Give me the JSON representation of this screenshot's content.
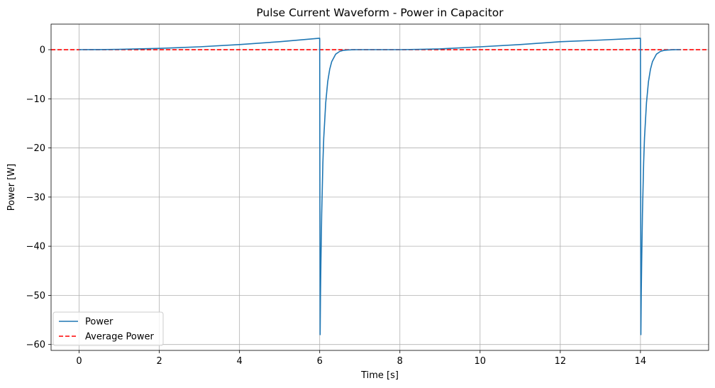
{
  "chart_data": {
    "type": "line",
    "title": "Pulse Current Waveform - Power in Capacitor",
    "xlabel": "Time [s]",
    "ylabel": "Power [W]",
    "xlim": [
      -0.7,
      15.7
    ],
    "ylim": [
      -61.2,
      5.2
    ],
    "xticks": [
      0,
      2,
      4,
      6,
      8,
      10,
      12,
      14
    ],
    "xtick_labels": [
      "0",
      "2",
      "4",
      "6",
      "8",
      "10",
      "12",
      "14"
    ],
    "yticks": [
      0,
      -10,
      -20,
      -30,
      -40,
      -50,
      -60
    ],
    "ytick_labels": [
      "0",
      "−10",
      "−20",
      "−30",
      "−40",
      "−50",
      "−60"
    ],
    "grid": true,
    "legend_position": "lower-left",
    "series": [
      {
        "name": "Power",
        "color": "#1f77b4",
        "style": "solid",
        "x": [
          0,
          0.5,
          1,
          2,
          3,
          4,
          5,
          5.99,
          6.0,
          6.01,
          6.02,
          6.03,
          6.05,
          6.08,
          6.1,
          6.15,
          6.2,
          6.25,
          6.3,
          6.4,
          6.5,
          6.6,
          6.7,
          6.85,
          7.0,
          7.5,
          8.0,
          8.5,
          9,
          10,
          11,
          12,
          13,
          13.99,
          14.0,
          14.01,
          14.02,
          14.03,
          14.05,
          14.08,
          14.1,
          14.15,
          14.2,
          14.25,
          14.3,
          14.4,
          14.5,
          14.6,
          14.7,
          14.85,
          15.0
        ],
        "y": [
          0,
          0.02,
          0.06,
          0.26,
          0.58,
          1.04,
          1.62,
          2.33,
          2.33,
          -58.0,
          -50.0,
          -43.5,
          -33.5,
          -23.0,
          -18.0,
          -10.8,
          -6.5,
          -4.0,
          -2.4,
          -0.9,
          -0.35,
          -0.13,
          -0.05,
          -0.01,
          0,
          0,
          0.01,
          0.06,
          0.16,
          0.58,
          1.04,
          1.62,
          1.95,
          2.33,
          2.33,
          -58.0,
          -50.0,
          -43.5,
          -33.5,
          -23.0,
          -18.0,
          -10.8,
          -6.5,
          -4.0,
          -2.4,
          -0.9,
          -0.35,
          -0.13,
          -0.05,
          -0.01,
          0
        ]
      },
      {
        "name": "Average Power",
        "color": "#ff0000",
        "style": "dashed",
        "value": 0
      }
    ]
  }
}
